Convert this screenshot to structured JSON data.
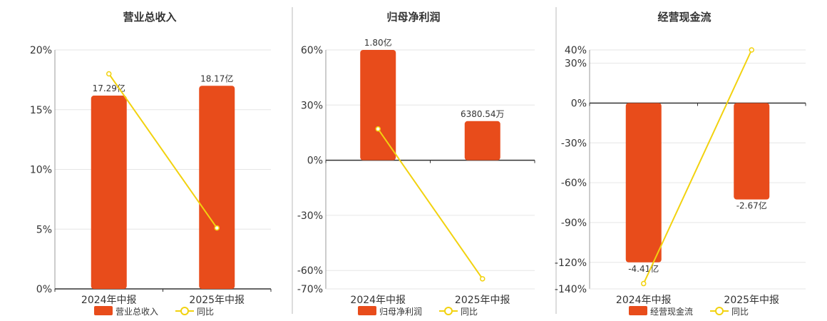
{
  "colors": {
    "bar": "#e84c1b",
    "line": "#f2d20f",
    "grid": "#e6e6e6",
    "axis": "#333333",
    "text": "#333333",
    "divider": "#bbbbbb"
  },
  "chart_data": [
    {
      "type": "bar",
      "title": "营业总收入",
      "categories": [
        "2024年中报",
        "2025年中报"
      ],
      "series": [
        {
          "name": "营业总收入",
          "kind": "bar",
          "values": [
            17.29,
            18.17
          ],
          "labels": [
            "17.29亿",
            "18.17亿"
          ]
        },
        {
          "name": "同比",
          "kind": "line",
          "values": [
            18.0,
            5.1
          ]
        }
      ],
      "ylim": [
        0,
        20
      ],
      "yticks": [
        0,
        5,
        10,
        15,
        20
      ],
      "ytick_labels": [
        "0%",
        "5%",
        "10%",
        "15%",
        "20%"
      ],
      "grid": true,
      "legend": "bottom"
    },
    {
      "type": "bar",
      "title": "归母净利润",
      "categories": [
        "2024年中报",
        "2025年中报"
      ],
      "series": [
        {
          "name": "归母净利润",
          "kind": "bar",
          "values": [
            1.8,
            0.638054
          ],
          "labels": [
            "1.80亿",
            "6380.54万"
          ]
        },
        {
          "name": "同比",
          "kind": "line",
          "values": [
            17.0,
            -64.5
          ]
        }
      ],
      "ylim": [
        -70,
        60
      ],
      "yticks": [
        -70,
        -60,
        -30,
        0,
        30,
        60
      ],
      "ytick_labels": [
        "-70%",
        "-60%",
        "-30%",
        "0%",
        "30%",
        "60%"
      ],
      "grid": true,
      "legend": "bottom"
    },
    {
      "type": "bar",
      "title": "经营现金流",
      "categories": [
        "2024年中报",
        "2025年中报"
      ],
      "series": [
        {
          "name": "经营现金流",
          "kind": "bar",
          "values": [
            -4.41,
            -2.67
          ],
          "labels": [
            "-4.41亿",
            "-2.67亿"
          ]
        },
        {
          "name": "同比",
          "kind": "line",
          "values": [
            -136.0,
            40.0
          ]
        }
      ],
      "ylim": [
        -140,
        40
      ],
      "yticks": [
        -140,
        -120,
        -90,
        -60,
        -30,
        0,
        30,
        40
      ],
      "ytick_labels": [
        "-140%",
        "-120%",
        "-90%",
        "-60%",
        "-30%",
        "0%",
        "30%",
        "40%"
      ],
      "grid": true,
      "legend": "bottom"
    }
  ]
}
